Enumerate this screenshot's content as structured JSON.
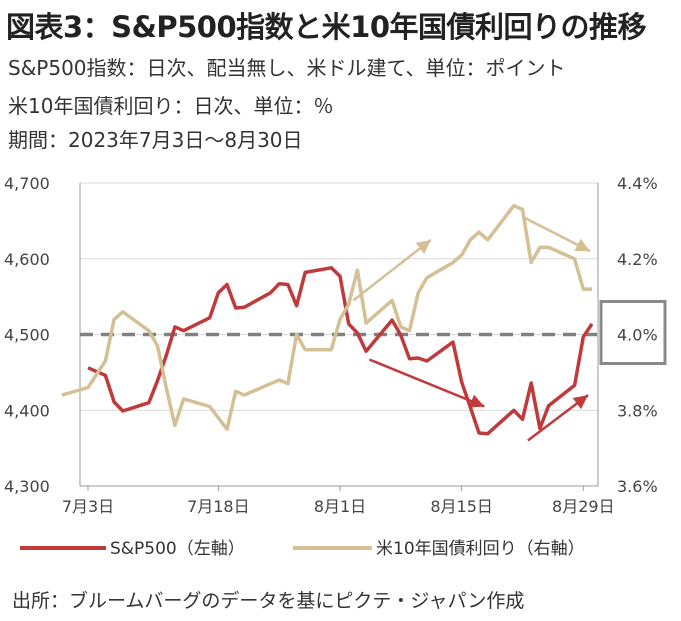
{
  "header": {
    "title": "図表3：S&P500指数と米10年国債利回りの推移",
    "line1": "S&P500指数：日次、配当無し、米ドル建て、単位：ポイント",
    "line2": "米10年国債利回り：日次、単位：％",
    "line3": "期間：2023年7月3日～8月30日"
  },
  "source": "出所：ブルームバーグのデータを基にピクテ・ジャパン作成",
  "colors": {
    "sp500": "#c0393b",
    "yield": "#d5bf95",
    "reference": "#808080",
    "box": "#8a8a8a"
  },
  "chart_data": {
    "type": "line",
    "x_tick_labels": [
      "7月3日",
      "7月18日",
      "8月1日",
      "8月15日",
      "8月29日"
    ],
    "left_axis": {
      "ticks": [
        "4,300",
        "4,400",
        "4,500",
        "4,600",
        "4,700"
      ],
      "ylim": [
        4300,
        4700
      ]
    },
    "right_axis": {
      "ticks": [
        "3.6%",
        "3.8%",
        "4.0%",
        "4.2%",
        "4.4%"
      ],
      "ylim": [
        3.6,
        4.4
      ]
    },
    "reference_line": {
      "axis": "right",
      "value": 4.0,
      "style": "dashed",
      "highlighted_label": "4.0%"
    },
    "series": [
      {
        "name": "S&P500（左軸）",
        "axis": "left",
        "dates": [
          "2023-07-03",
          "2023-07-05",
          "2023-07-06",
          "2023-07-07",
          "2023-07-10",
          "2023-07-11",
          "2023-07-12",
          "2023-07-13",
          "2023-07-14",
          "2023-07-17",
          "2023-07-18",
          "2023-07-19",
          "2023-07-20",
          "2023-07-21",
          "2023-07-24",
          "2023-07-25",
          "2023-07-26",
          "2023-07-27",
          "2023-07-28",
          "2023-07-31",
          "2023-08-01",
          "2023-08-02",
          "2023-08-03",
          "2023-08-04",
          "2023-08-07",
          "2023-08-08",
          "2023-08-09",
          "2023-08-10",
          "2023-08-11",
          "2023-08-14",
          "2023-08-15",
          "2023-08-16",
          "2023-08-17",
          "2023-08-18",
          "2023-08-21",
          "2023-08-22",
          "2023-08-23",
          "2023-08-24",
          "2023-08-25",
          "2023-08-28",
          "2023-08-29",
          "2023-08-30"
        ],
        "values": [
          4456,
          4446,
          4411,
          4399,
          4410,
          4439,
          4472,
          4510,
          4505,
          4522,
          4555,
          4566,
          4535,
          4536,
          4555,
          4567,
          4566,
          4538,
          4582,
          4588,
          4577,
          4514,
          4502,
          4478,
          4519,
          4499,
          4468,
          4469,
          4465,
          4490,
          4437,
          4404,
          4370,
          4369,
          4400,
          4388,
          4436,
          4376,
          4406,
          4433,
          4497,
          4514
        ]
      },
      {
        "name": "米10年国債利回り（右軸）",
        "axis": "right",
        "dates": [
          "2023-06-30",
          "2023-07-03",
          "2023-07-05",
          "2023-07-06",
          "2023-07-07",
          "2023-07-10",
          "2023-07-11",
          "2023-07-12",
          "2023-07-13",
          "2023-07-14",
          "2023-07-17",
          "2023-07-18",
          "2023-07-19",
          "2023-07-20",
          "2023-07-21",
          "2023-07-24",
          "2023-07-25",
          "2023-07-26",
          "2023-07-27",
          "2023-07-28",
          "2023-07-31",
          "2023-08-01",
          "2023-08-02",
          "2023-08-03",
          "2023-08-04",
          "2023-08-07",
          "2023-08-08",
          "2023-08-09",
          "2023-08-10",
          "2023-08-11",
          "2023-08-14",
          "2023-08-15",
          "2023-08-16",
          "2023-08-17",
          "2023-08-18",
          "2023-08-21",
          "2023-08-22",
          "2023-08-23",
          "2023-08-24",
          "2023-08-25",
          "2023-08-28",
          "2023-08-29",
          "2023-08-30"
        ],
        "values": [
          3.84,
          3.86,
          3.93,
          4.04,
          4.06,
          4.01,
          3.97,
          3.86,
          3.76,
          3.83,
          3.81,
          3.78,
          3.75,
          3.85,
          3.84,
          3.87,
          3.88,
          3.87,
          4.0,
          3.96,
          3.96,
          4.04,
          4.08,
          4.17,
          4.03,
          4.09,
          4.02,
          4.01,
          4.11,
          4.15,
          4.19,
          4.21,
          4.25,
          4.27,
          4.25,
          4.34,
          4.33,
          4.19,
          4.23,
          4.23,
          4.2,
          4.12,
          4.12
        ]
      }
    ],
    "annotations": [
      {
        "type": "arrow",
        "series": "S&P500（左軸）",
        "from": "2023-08-03",
        "to": "2023-08-16",
        "trend": "down"
      },
      {
        "type": "arrow",
        "series": "S&P500（左軸）",
        "from": "2023-08-24",
        "to": "2023-08-30",
        "trend": "up"
      },
      {
        "type": "arrow",
        "series": "米10年国債利回り（右軸）",
        "from": "2023-08-03",
        "to": "2023-08-14",
        "trend": "up"
      },
      {
        "type": "arrow",
        "series": "米10年国債利回り（右軸）",
        "from": "2023-08-23",
        "to": "2023-08-30",
        "trend": "down"
      }
    ],
    "grid": "horizontal",
    "legend": "bottom"
  }
}
